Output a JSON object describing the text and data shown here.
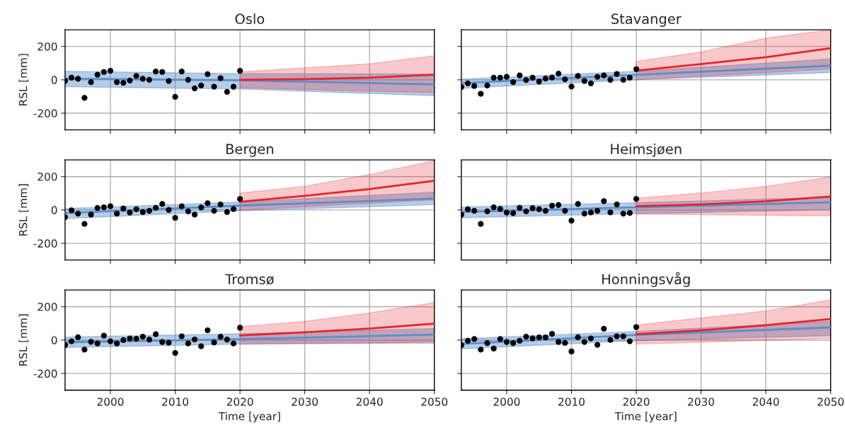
{
  "chart_data": [
    {
      "type": "line",
      "title": "Oslo",
      "ylabel": "RSL [mm]",
      "xlim": [
        1993,
        2050
      ],
      "ylim": [
        -300,
        300
      ],
      "xticks": [
        2000,
        2010,
        2020,
        2030,
        2040,
        2050
      ],
      "yticks": [
        -200,
        0,
        200
      ],
      "grid": true,
      "tick_labels": "y",
      "series": [
        {
          "color": "#5b8ec9",
          "x": [
            1993,
            2020,
            2050
          ],
          "values": [
            7,
            -3,
            -28
          ],
          "lower": [
            -41,
            -55,
            -95
          ],
          "upper": [
            51,
            37,
            34
          ]
        },
        {
          "color": "#e8232b",
          "x": [
            2020,
            2030,
            2040,
            2050
          ],
          "values": [
            0,
            4,
            13,
            31
          ],
          "lower": [
            -48,
            -58,
            -68,
            -77
          ],
          "upper": [
            47,
            72,
            96,
            145
          ]
        },
        {
          "type": "scatter",
          "color": "#000000",
          "marker": "circle",
          "x": [
            1993,
            1994,
            1995,
            1996,
            1997,
            1998,
            1999,
            2000,
            2001,
            2002,
            2003,
            2004,
            2005,
            2006,
            2007,
            2008,
            2009,
            2010,
            2011,
            2012,
            2013,
            2014,
            2015,
            2016,
            2017,
            2018,
            2019,
            2020
          ],
          "values": [
            -6,
            13,
            6,
            -108,
            -14,
            31,
            47,
            54,
            -14,
            -18,
            -4,
            23,
            6,
            0,
            50,
            47,
            -7,
            -102,
            50,
            0,
            -51,
            -34,
            34,
            -41,
            10,
            -72,
            -41,
            54
          ]
        }
      ]
    },
    {
      "type": "line",
      "title": "Stavanger",
      "xlim": [
        1993,
        2050
      ],
      "ylim": [
        -300,
        300
      ],
      "xticks": [
        2000,
        2010,
        2020,
        2030,
        2040,
        2050
      ],
      "yticks": [
        -200,
        0,
        200
      ],
      "grid": true,
      "tick_labels": false,
      "series": [
        {
          "color": "#5b8ec9",
          "x": [
            1993,
            2020,
            2050
          ],
          "values": [
            -20,
            30,
            85
          ],
          "lower": [
            -51,
            0,
            44
          ],
          "upper": [
            4,
            51,
            125
          ]
        },
        {
          "color": "#e8232b",
          "x": [
            2020,
            2030,
            2040,
            2050
          ],
          "values": [
            55,
            94,
            136,
            190
          ],
          "lower": [
            1,
            22,
            43,
            65
          ],
          "upper": [
            111,
            167,
            250,
            300
          ]
        },
        {
          "type": "scatter",
          "color": "#000000",
          "marker": "circle",
          "x": [
            1993,
            1994,
            1995,
            1996,
            1997,
            1998,
            1999,
            2000,
            2001,
            2002,
            2003,
            2004,
            2005,
            2006,
            2007,
            2008,
            2009,
            2010,
            2011,
            2012,
            2013,
            2014,
            2015,
            2016,
            2017,
            2018,
            2019,
            2020
          ],
          "values": [
            -43,
            -21,
            -37,
            -84,
            -34,
            13,
            13,
            18,
            -14,
            26,
            -1,
            13,
            -11,
            7,
            14,
            37,
            3,
            -40,
            23,
            -7,
            -21,
            18,
            26,
            0,
            35,
            0,
            13,
            64
          ]
        }
      ]
    },
    {
      "type": "line",
      "title": "Bergen",
      "ylabel": "RSL [mm]",
      "xlim": [
        1993,
        2050
      ],
      "ylim": [
        -300,
        300
      ],
      "xticks": [
        2000,
        2010,
        2020,
        2030,
        2040,
        2050
      ],
      "yticks": [
        -200,
        0,
        200
      ],
      "grid": true,
      "tick_labels": "y",
      "series": [
        {
          "color": "#5b8ec9",
          "x": [
            1993,
            2020,
            2050
          ],
          "values": [
            -19,
            26,
            68
          ],
          "lower": [
            -52,
            -5,
            32
          ],
          "upper": [
            8,
            47,
            107
          ]
        },
        {
          "color": "#e8232b",
          "x": [
            2020,
            2030,
            2040,
            2050
          ],
          "values": [
            49,
            85,
            125,
            175
          ],
          "lower": [
            -2,
            19,
            40,
            61
          ],
          "upper": [
            101,
            142,
            213,
            295
          ]
        },
        {
          "type": "scatter",
          "color": "#000000",
          "marker": "circle",
          "x": [
            1993,
            1994,
            1995,
            1996,
            1997,
            1998,
            1999,
            2000,
            2001,
            2002,
            2003,
            2004,
            2005,
            2006,
            2007,
            2008,
            2009,
            2010,
            2011,
            2012,
            2013,
            2014,
            2015,
            2016,
            2017,
            2018,
            2019,
            2020
          ],
          "values": [
            -43,
            -2,
            -22,
            -84,
            -28,
            12,
            16,
            22,
            -22,
            9,
            -16,
            4,
            -13,
            -5,
            13,
            36,
            0,
            -47,
            22,
            -8,
            -28,
            15,
            40,
            -5,
            33,
            -12,
            5,
            66
          ]
        }
      ]
    },
    {
      "type": "line",
      "title": "Heimsjøen",
      "xlim": [
        1993,
        2050
      ],
      "ylim": [
        -300,
        300
      ],
      "xticks": [
        2000,
        2010,
        2020,
        2030,
        2040,
        2050
      ],
      "yticks": [
        -200,
        0,
        200
      ],
      "grid": true,
      "tick_labels": false,
      "series": [
        {
          "color": "#5b8ec9",
          "x": [
            1993,
            2020,
            2050
          ],
          "values": [
            -13,
            16,
            46
          ],
          "lower": [
            -47,
            -22,
            1
          ],
          "upper": [
            18,
            43,
            76
          ]
        },
        {
          "color": "#e8232b",
          "x": [
            2020,
            2030,
            2040,
            2050
          ],
          "values": [
            22,
            33,
            52,
            81
          ],
          "lower": [
            -25,
            -28,
            -32,
            -35
          ],
          "upper": [
            71,
            101,
            142,
            198
          ]
        },
        {
          "type": "scatter",
          "color": "#000000",
          "marker": "circle",
          "x": [
            1993,
            1994,
            1995,
            1996,
            1997,
            1998,
            1999,
            2000,
            2001,
            2002,
            2003,
            2004,
            2005,
            2006,
            2007,
            2008,
            2009,
            2010,
            2011,
            2012,
            2013,
            2014,
            2015,
            2016,
            2017,
            2018,
            2019,
            2020
          ],
          "values": [
            -28,
            4,
            -5,
            -84,
            -8,
            16,
            6,
            -16,
            -19,
            13,
            -8,
            11,
            4,
            -5,
            26,
            30,
            -5,
            -64,
            36,
            -22,
            -15,
            -5,
            53,
            -15,
            33,
            -22,
            -18,
            66
          ]
        }
      ]
    },
    {
      "type": "line",
      "title": "Tromsø",
      "xlabel": "Time [year]",
      "ylabel": "RSL [mm]",
      "xlim": [
        1993,
        2050
      ],
      "ylim": [
        -300,
        300
      ],
      "xticks": [
        2000,
        2010,
        2020,
        2030,
        2040,
        2050
      ],
      "yticks": [
        -200,
        0,
        200
      ],
      "grid": true,
      "series": [
        {
          "color": "#5b8ec9",
          "x": [
            1993,
            2020,
            2050
          ],
          "values": [
            -13,
            6,
            33
          ],
          "lower": [
            -44,
            -24,
            -13
          ],
          "upper": [
            18,
            38,
            69
          ]
        },
        {
          "color": "#e8232b",
          "x": [
            2020,
            2030,
            2040,
            2050
          ],
          "values": [
            28,
            47,
            69,
            99
          ],
          "lower": [
            -24,
            -22,
            -20,
            -18
          ],
          "upper": [
            81,
            112,
            163,
            225
          ]
        },
        {
          "type": "scatter",
          "color": "#000000",
          "marker": "circle",
          "x": [
            1993,
            1994,
            1995,
            1996,
            1997,
            1998,
            1999,
            2000,
            2001,
            2002,
            2003,
            2004,
            2005,
            2006,
            2007,
            2008,
            2009,
            2010,
            2011,
            2012,
            2013,
            2014,
            2015,
            2016,
            2017,
            2018,
            2019,
            2020
          ],
          "values": [
            -30,
            -7,
            17,
            -57,
            -10,
            -20,
            27,
            -7,
            -20,
            0,
            10,
            8,
            20,
            3,
            35,
            -11,
            -16,
            -77,
            23,
            -20,
            4,
            -37,
            59,
            -14,
            20,
            3,
            -20,
            74
          ]
        }
      ]
    },
    {
      "type": "line",
      "title": "Honningsvåg",
      "xlabel": "Time [year]",
      "xlim": [
        1993,
        2050
      ],
      "ylim": [
        -300,
        300
      ],
      "xticks": [
        2000,
        2010,
        2020,
        2030,
        2040,
        2050
      ],
      "yticks": [
        -200,
        0,
        200
      ],
      "grid": true,
      "tick_labels": "x",
      "series": [
        {
          "color": "#5b8ec9",
          "x": [
            1993,
            2020,
            2050
          ],
          "values": [
            -23,
            31,
            76
          ],
          "lower": [
            -52,
            -4,
            27
          ],
          "upper": [
            8,
            52,
            112
          ]
        },
        {
          "color": "#e8232b",
          "x": [
            2020,
            2030,
            2040,
            2050
          ],
          "values": [
            35,
            58,
            89,
            126
          ],
          "lower": [
            -24,
            -13,
            -1,
            10
          ],
          "upper": [
            90,
            133,
            175,
            242
          ]
        },
        {
          "type": "scatter",
          "color": "#000000",
          "marker": "circle",
          "x": [
            1993,
            1994,
            1995,
            1996,
            1997,
            1998,
            1999,
            2000,
            2001,
            2002,
            2003,
            2004,
            2005,
            2006,
            2007,
            2008,
            2009,
            2010,
            2011,
            2012,
            2013,
            2014,
            2015,
            2016,
            2017,
            2018,
            2019,
            2020
          ],
          "values": [
            -30,
            -4,
            7,
            -57,
            -18,
            -51,
            7,
            -11,
            -18,
            -4,
            20,
            11,
            16,
            16,
            37,
            -11,
            -17,
            -68,
            17,
            -11,
            10,
            -28,
            68,
            1,
            23,
            23,
            -7,
            78
          ]
        }
      ]
    }
  ]
}
